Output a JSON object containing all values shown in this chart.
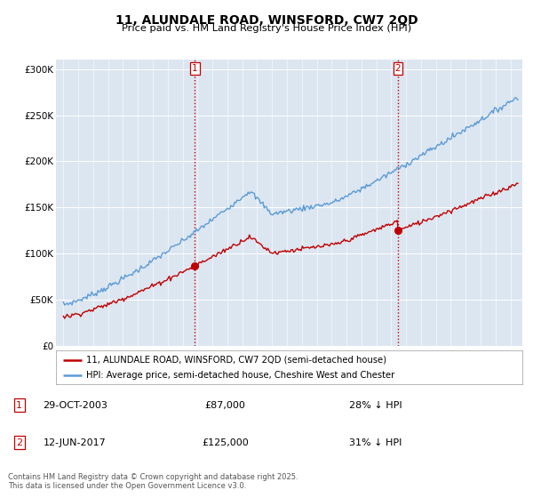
{
  "title1": "11, ALUNDALE ROAD, WINSFORD, CW7 2QD",
  "title2": "Price paid vs. HM Land Registry's House Price Index (HPI)",
  "legend_line1": "11, ALUNDALE ROAD, WINSFORD, CW7 2QD (semi-detached house)",
  "legend_line2": "HPI: Average price, semi-detached house, Cheshire West and Chester",
  "sale1_label": "1",
  "sale1_date": "29-OCT-2003",
  "sale1_price": "£87,000",
  "sale1_hpi": "28% ↓ HPI",
  "sale2_label": "2",
  "sale2_date": "12-JUN-2017",
  "sale2_price": "£125,000",
  "sale2_hpi": "31% ↓ HPI",
  "footer": "Contains HM Land Registry data © Crown copyright and database right 2025.\nThis data is licensed under the Open Government Licence v3.0.",
  "hpi_color": "#5b9bd5",
  "price_color": "#c00000",
  "marker_color": "#c00000",
  "sale1_year": 2003.83,
  "sale1_value": 87000,
  "sale2_year": 2017.44,
  "sale2_value": 125000,
  "ylim": [
    0,
    310000
  ],
  "yticks": [
    0,
    50000,
    100000,
    150000,
    200000,
    250000,
    300000
  ],
  "ytick_labels": [
    "£0",
    "£50K",
    "£100K",
    "£150K",
    "£200K",
    "£250K",
    "£300K"
  ],
  "xlim_start": 1994.5,
  "xlim_end": 2025.8,
  "plot_bg": "#dce6f1",
  "grid_color": "#ffffff",
  "vline_color": "#c00000"
}
